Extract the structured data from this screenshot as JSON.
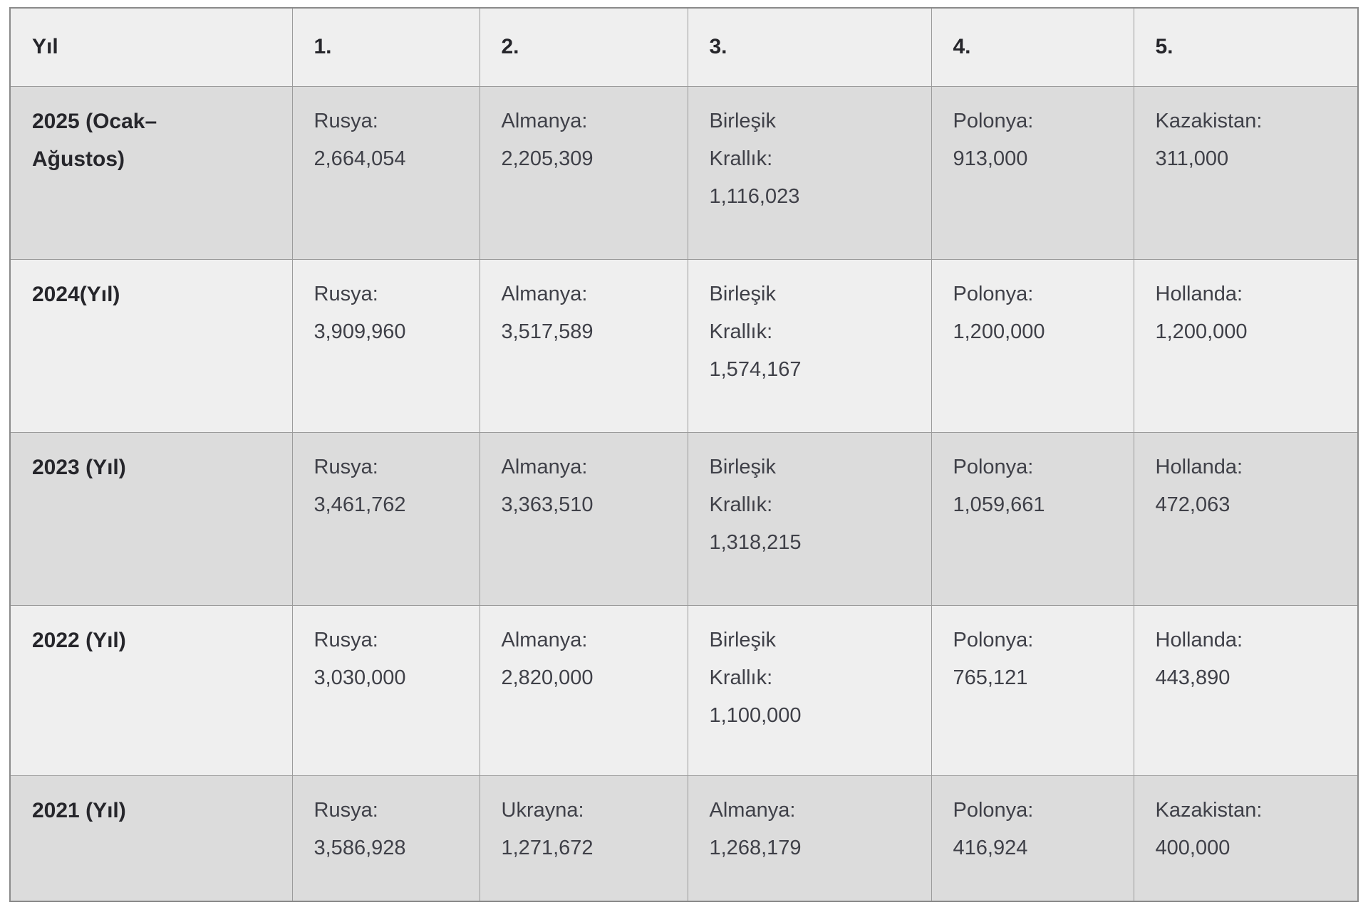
{
  "colors": {
    "bg-page": "#ffffff",
    "bg-light": "#efefef",
    "bg-shaded": "#dcdcdc",
    "border": "#9b9b9b",
    "border-outer": "#8a8a8a",
    "text-dark": "#26262b",
    "text-body": "#3f4048"
  },
  "table": {
    "columns": [
      "Yıl",
      "1.",
      "2.",
      "3.",
      "4.",
      "5."
    ],
    "rows": [
      {
        "year_lines": [
          "2025 (Ocak–",
          "Ağustos)"
        ],
        "ranks": [
          [
            "Rusya:",
            "2,664,054"
          ],
          [
            "Almanya:",
            "2,205,309"
          ],
          [
            "Birleşik",
            "Krallık:",
            "1,116,023"
          ],
          [
            "Polonya:",
            "913,000"
          ],
          [
            "Kazakistan:",
            "311,000"
          ]
        ]
      },
      {
        "year_lines": [
          "2024(Yıl)"
        ],
        "ranks": [
          [
            "Rusya:",
            "3,909,960"
          ],
          [
            "Almanya:",
            "3,517,589"
          ],
          [
            "Birleşik",
            "Krallık:",
            "1,574,167"
          ],
          [
            "Polonya:",
            "1,200,000"
          ],
          [
            "Hollanda:",
            "1,200,000"
          ]
        ]
      },
      {
        "year_lines": [
          "2023 (Yıl)"
        ],
        "ranks": [
          [
            "Rusya:",
            "3,461,762"
          ],
          [
            "Almanya:",
            "3,363,510"
          ],
          [
            "Birleşik",
            "Krallık:",
            "1,318,215"
          ],
          [
            "Polonya:",
            "1,059,661"
          ],
          [
            "Hollanda:",
            "472,063"
          ]
        ]
      },
      {
        "year_lines": [
          "2022 (Yıl)"
        ],
        "ranks": [
          [
            "Rusya:",
            "3,030,000"
          ],
          [
            "Almanya:",
            "2,820,000"
          ],
          [
            "Birleşik",
            "Krallık:",
            "1,100,000"
          ],
          [
            "Polonya:",
            "765,121"
          ],
          [
            "Hollanda:",
            "443,890"
          ]
        ]
      },
      {
        "year_lines": [
          "2021 (Yıl)"
        ],
        "ranks": [
          [
            "Rusya:",
            "3,586,928"
          ],
          [
            "Ukrayna:",
            "1,271,672"
          ],
          [
            "Almanya:",
            "1,268,179"
          ],
          [
            "Polonya:",
            "416,924"
          ],
          [
            "Kazakistan:",
            "400,000"
          ]
        ]
      }
    ]
  }
}
